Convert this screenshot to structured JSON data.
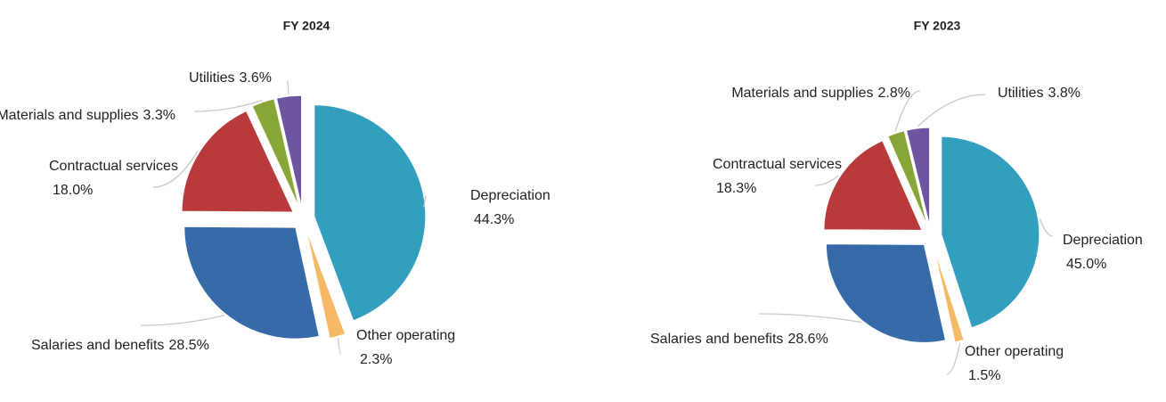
{
  "chart_data": [
    {
      "type": "pie",
      "title": "FY 2024",
      "categories": [
        "Depreciation",
        "Other operating",
        "Salaries and benefits",
        "Contractual services",
        "Materials and supplies",
        "Utilities"
      ],
      "values": [
        44.3,
        2.3,
        28.5,
        18.0,
        3.3,
        3.6
      ],
      "value_labels": [
        "44.3%",
        "2.3%",
        "28.5%",
        "18.0%",
        "3.3%",
        "3.6%"
      ],
      "colors": [
        "#339fbf",
        "#f5b965",
        "#376aa9",
        "#b83a3a",
        "#86a637",
        "#6d55a0"
      ]
    },
    {
      "type": "pie",
      "title": "FY 2023",
      "categories": [
        "Depreciation",
        "Other operating",
        "Salaries and benefits",
        "Contractual services",
        "Materials and supplies",
        "Utilities"
      ],
      "values": [
        45.0,
        1.5,
        28.6,
        18.3,
        2.8,
        3.8
      ],
      "value_labels": [
        "45.0%",
        "1.5%",
        "28.6%",
        "18.3%",
        "2.8%",
        "3.8%"
      ],
      "colors": [
        "#339fbf",
        "#f5b965",
        "#376aa9",
        "#b83a3a",
        "#86a637",
        "#6d55a0"
      ]
    }
  ]
}
